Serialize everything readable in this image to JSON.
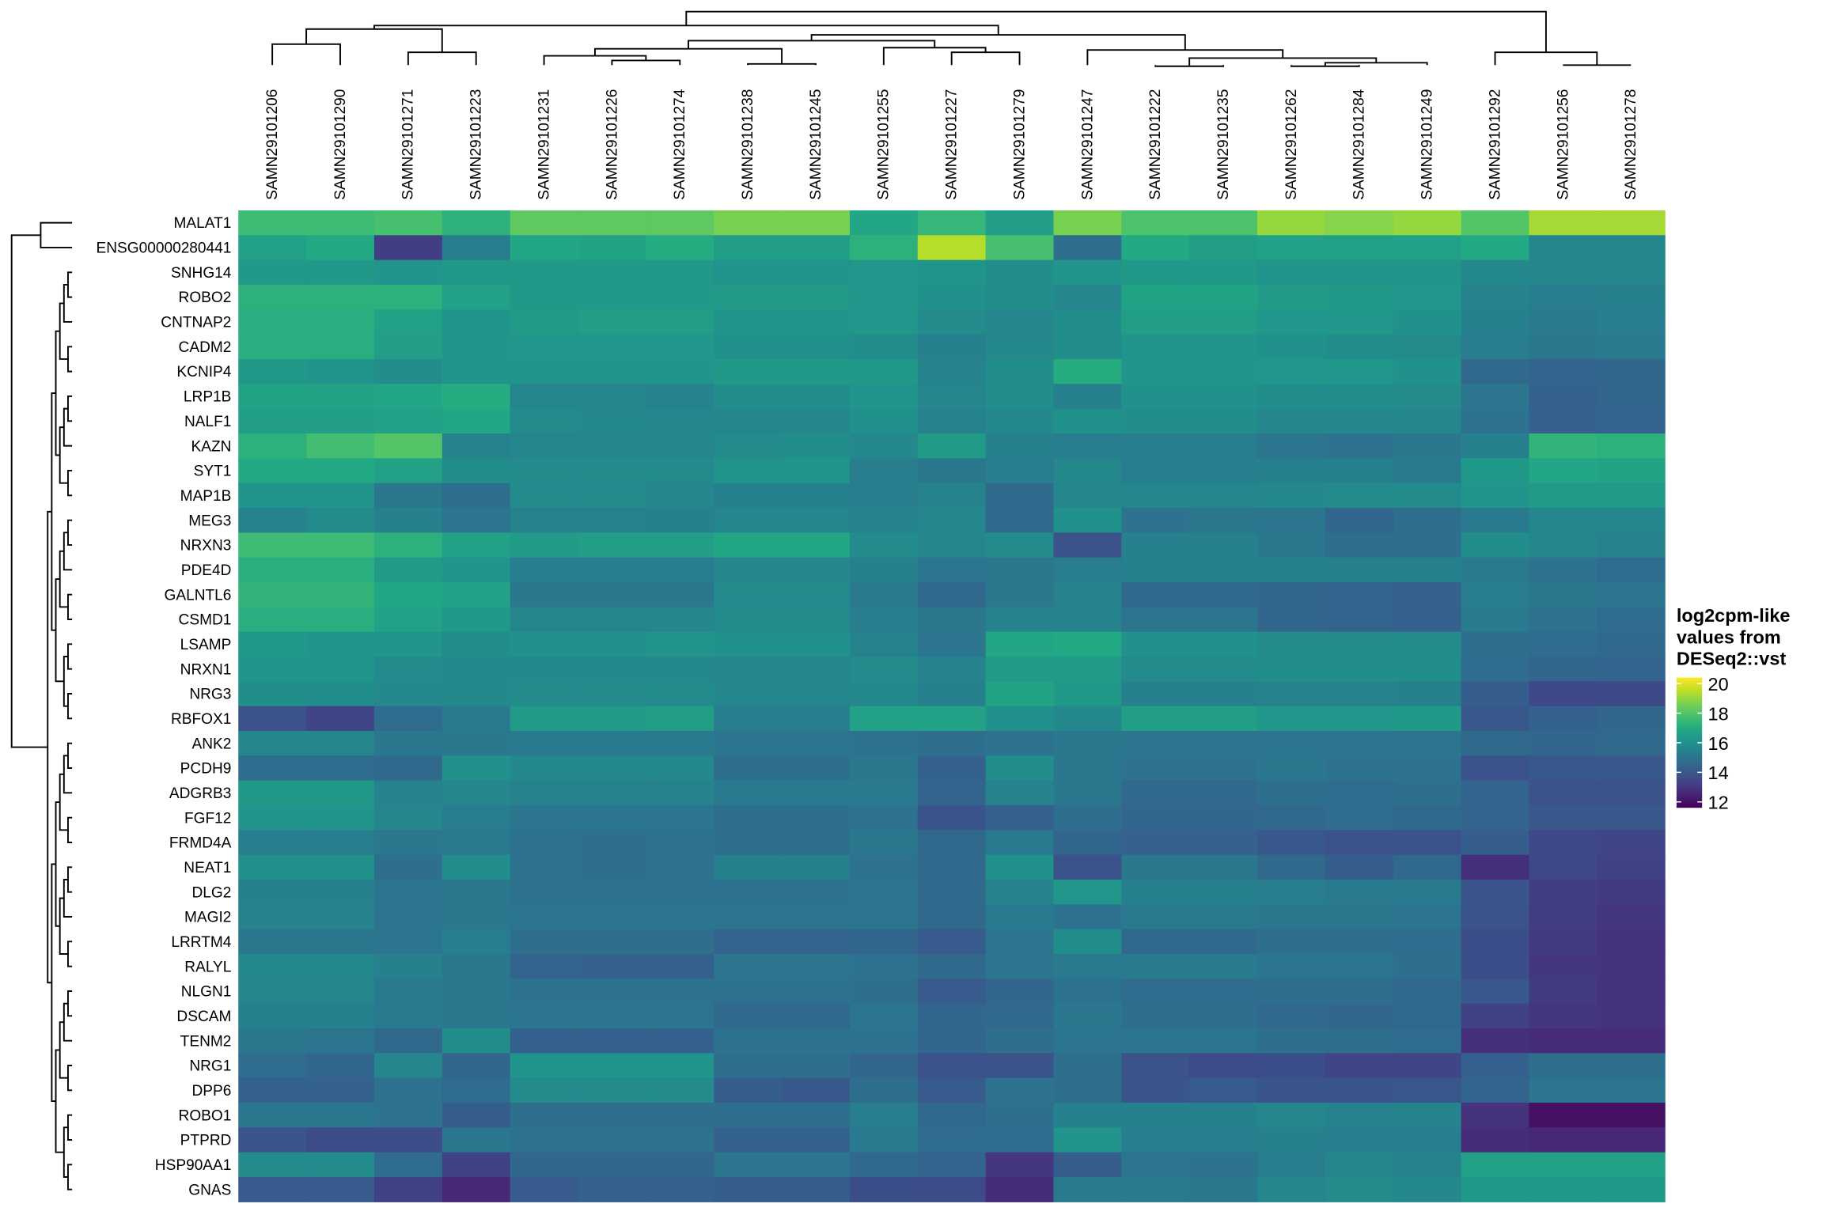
{
  "chart_data": {
    "type": "heatmap",
    "x": [
      "SAMN29101206",
      "SAMN29101290",
      "SAMN29101271",
      "SAMN29101223",
      "SAMN29101231",
      "SAMN29101226",
      "SAMN29101274",
      "SAMN29101238",
      "SAMN29101245",
      "SAMN29101255",
      "SAMN29101227",
      "SAMN29101279",
      "SAMN29101247",
      "SAMN29101222",
      "SAMN29101235",
      "SAMN29101262",
      "SAMN29101284",
      "SAMN29101249",
      "SAMN29101292",
      "SAMN29101256",
      "SAMN29101278"
    ],
    "y": [
      "MALAT1",
      "ENSG00000280441",
      "SNHG14",
      "ROBO2",
      "CNTNAP2",
      "CADM2",
      "KCNIP4",
      "LRP1B",
      "NALF1",
      "KAZN",
      "SYT1",
      "MAP1B",
      "MEG3",
      "NRXN3",
      "PDE4D",
      "GALNTL6",
      "CSMD1",
      "LSAMP",
      "NRXN1",
      "NRG3",
      "RBFOX1",
      "ANK2",
      "PCDH9",
      "ADGRB3",
      "FGF12",
      "FRMD4A",
      "NEAT1",
      "DLG2",
      "MAGI2",
      "LRRTM4",
      "RALYL",
      "NLGN1",
      "DSCAM",
      "TENM2",
      "NRG1",
      "DPP6",
      "ROBO1",
      "PTPRD",
      "HSP90AA1",
      "GNAS"
    ],
    "values": [
      [
        17.6,
        17.6,
        17.8,
        17.2,
        18.2,
        18.2,
        18.2,
        18.6,
        18.6,
        16.8,
        17.4,
        16.5,
        18.6,
        17.9,
        17.9,
        19.0,
        18.8,
        19.0,
        18.0,
        19.2,
        19.2
      ],
      [
        16.6,
        16.9,
        13.2,
        15.3,
        16.8,
        16.7,
        17.0,
        16.5,
        16.5,
        17.2,
        19.4,
        17.8,
        14.8,
        16.9,
        16.5,
        16.6,
        16.6,
        16.6,
        16.9,
        15.6,
        15.6
      ],
      [
        16.3,
        16.3,
        16.1,
        16.3,
        16.3,
        16.3,
        16.3,
        16.1,
        16.1,
        16.2,
        16.1,
        15.9,
        16.1,
        16.3,
        16.3,
        16.1,
        16.1,
        16.1,
        15.7,
        15.6,
        15.6
      ],
      [
        17.2,
        17.2,
        17.2,
        16.6,
        16.3,
        16.3,
        16.3,
        16.4,
        16.4,
        16.2,
        16.0,
        15.9,
        15.6,
        16.7,
        16.7,
        16.4,
        16.3,
        16.2,
        15.5,
        15.3,
        15.4
      ],
      [
        17.1,
        17.1,
        16.6,
        16.1,
        16.4,
        16.5,
        16.5,
        16.1,
        16.1,
        16.2,
        15.8,
        15.6,
        15.9,
        16.5,
        16.5,
        16.2,
        16.2,
        16.0,
        15.4,
        15.2,
        15.3
      ],
      [
        17.1,
        17.1,
        16.5,
        16.1,
        16.2,
        16.2,
        16.2,
        16.0,
        16.0,
        15.9,
        15.4,
        15.7,
        15.9,
        16.1,
        16.1,
        16.0,
        15.9,
        15.8,
        15.3,
        15.1,
        15.2
      ],
      [
        16.3,
        16.1,
        15.9,
        16.1,
        16.1,
        16.1,
        16.1,
        16.3,
        16.3,
        16.3,
        15.5,
        15.9,
        17.0,
        16.1,
        16.1,
        16.2,
        16.2,
        16.0,
        14.6,
        14.4,
        14.5
      ],
      [
        16.7,
        16.7,
        16.8,
        17.0,
        15.6,
        15.6,
        15.5,
        15.9,
        15.9,
        16.1,
        15.6,
        15.9,
        15.4,
        16.0,
        16.0,
        15.9,
        15.9,
        15.8,
        15.0,
        14.3,
        14.5
      ],
      [
        16.5,
        16.5,
        16.6,
        16.8,
        15.8,
        15.7,
        15.6,
        15.6,
        15.6,
        16.0,
        15.5,
        15.7,
        16.0,
        15.9,
        15.9,
        15.6,
        15.6,
        15.6,
        14.9,
        14.3,
        14.4
      ],
      [
        17.2,
        17.7,
        18.0,
        15.5,
        15.6,
        15.6,
        15.6,
        15.8,
        15.9,
        15.7,
        16.4,
        15.4,
        15.3,
        15.3,
        15.3,
        15.0,
        14.9,
        15.1,
        15.4,
        17.3,
        17.2
      ],
      [
        16.9,
        16.9,
        16.6,
        15.9,
        15.8,
        15.8,
        15.8,
        16.1,
        16.1,
        15.3,
        15.1,
        15.3,
        15.7,
        15.3,
        15.3,
        15.4,
        15.4,
        15.2,
        16.3,
        16.8,
        16.7
      ],
      [
        16.1,
        16.1,
        15.1,
        14.8,
        15.8,
        15.8,
        15.6,
        15.4,
        15.4,
        15.3,
        15.5,
        14.6,
        15.6,
        15.6,
        15.6,
        15.7,
        15.8,
        15.8,
        16.1,
        16.4,
        16.4
      ],
      [
        15.5,
        15.8,
        15.4,
        15.0,
        15.5,
        15.5,
        15.4,
        15.6,
        15.6,
        15.5,
        15.6,
        14.6,
        16.0,
        14.9,
        15.1,
        15.0,
        14.5,
        14.8,
        15.2,
        15.6,
        15.6
      ],
      [
        17.6,
        17.6,
        17.2,
        16.6,
        16.4,
        16.5,
        16.5,
        16.8,
        16.8,
        15.8,
        15.6,
        15.8,
        13.8,
        15.4,
        15.4,
        15.1,
        14.8,
        14.8,
        15.9,
        15.6,
        15.5
      ],
      [
        17.1,
        17.1,
        16.4,
        16.1,
        15.3,
        15.3,
        15.3,
        15.6,
        15.6,
        15.4,
        15.0,
        15.1,
        15.3,
        15.4,
        15.4,
        15.4,
        15.4,
        15.4,
        15.2,
        14.9,
        14.7
      ],
      [
        17.3,
        17.3,
        16.8,
        16.6,
        15.1,
        15.1,
        15.1,
        15.8,
        15.8,
        15.2,
        14.6,
        15.1,
        15.5,
        14.6,
        14.6,
        14.5,
        14.4,
        14.3,
        15.3,
        15.1,
        15.0
      ],
      [
        17.1,
        17.1,
        16.6,
        16.3,
        15.6,
        15.6,
        15.6,
        15.8,
        15.8,
        15.3,
        15.1,
        15.5,
        15.5,
        15.0,
        15.0,
        14.5,
        14.4,
        14.3,
        15.2,
        14.9,
        14.7
      ],
      [
        16.3,
        16.1,
        16.1,
        15.9,
        16.0,
        16.0,
        16.1,
        16.0,
        16.0,
        15.5,
        15.0,
        16.8,
        16.9,
        16.0,
        16.0,
        15.8,
        15.8,
        15.8,
        14.8,
        14.7,
        14.6
      ],
      [
        16.1,
        16.1,
        15.8,
        15.7,
        15.7,
        15.7,
        15.7,
        15.6,
        15.6,
        15.8,
        15.5,
        16.4,
        16.4,
        15.8,
        15.8,
        15.9,
        15.9,
        15.9,
        14.7,
        14.5,
        14.4
      ],
      [
        15.9,
        15.9,
        15.7,
        15.7,
        15.8,
        15.8,
        15.8,
        15.6,
        15.6,
        15.7,
        15.4,
        16.7,
        16.3,
        15.4,
        15.4,
        15.5,
        15.5,
        15.4,
        14.2,
        13.5,
        13.5
      ],
      [
        13.8,
        13.4,
        14.7,
        15.2,
        16.4,
        16.4,
        16.5,
        15.3,
        15.3,
        16.6,
        16.6,
        16.0,
        15.7,
        16.5,
        16.5,
        16.2,
        16.2,
        16.3,
        14.0,
        14.3,
        14.5
      ],
      [
        15.6,
        15.6,
        15.1,
        15.1,
        15.2,
        15.2,
        15.2,
        15.0,
        15.0,
        14.9,
        14.8,
        14.9,
        15.1,
        15.0,
        15.0,
        15.0,
        15.0,
        15.0,
        14.6,
        14.5,
        14.6
      ],
      [
        14.7,
        14.7,
        14.6,
        16.0,
        15.7,
        15.7,
        15.7,
        14.8,
        14.8,
        15.1,
        14.3,
        15.9,
        15.1,
        14.9,
        14.9,
        15.1,
        14.9,
        14.9,
        13.8,
        14.0,
        14.0
      ],
      [
        16.3,
        16.3,
        15.5,
        15.6,
        15.5,
        15.5,
        15.5,
        15.2,
        15.2,
        15.2,
        14.4,
        15.5,
        15.1,
        14.6,
        14.6,
        14.8,
        14.7,
        14.8,
        14.4,
        13.8,
        13.8
      ],
      [
        16.1,
        16.1,
        15.6,
        15.3,
        15.0,
        15.0,
        15.0,
        14.8,
        14.8,
        14.9,
        13.9,
        14.3,
        14.8,
        14.5,
        14.5,
        14.6,
        14.7,
        14.6,
        14.4,
        14.0,
        14.0
      ],
      [
        15.3,
        15.3,
        15.1,
        15.2,
        14.9,
        14.8,
        14.9,
        14.8,
        14.8,
        15.1,
        14.6,
        15.2,
        14.5,
        14.3,
        14.3,
        14.0,
        13.8,
        13.8,
        14.2,
        13.5,
        13.4
      ],
      [
        16.0,
        16.0,
        14.8,
        15.9,
        14.9,
        14.8,
        14.9,
        15.4,
        15.4,
        14.9,
        14.6,
        16.0,
        13.8,
        15.1,
        15.1,
        14.6,
        14.2,
        14.6,
        12.8,
        13.5,
        13.3
      ],
      [
        15.4,
        15.4,
        15.0,
        15.1,
        14.9,
        14.9,
        14.9,
        14.9,
        14.9,
        15.0,
        14.6,
        15.5,
        16.2,
        15.4,
        15.4,
        15.3,
        15.2,
        15.2,
        13.9,
        13.2,
        13.1
      ],
      [
        15.5,
        15.5,
        15.0,
        15.1,
        15.0,
        15.0,
        15.0,
        15.0,
        15.0,
        15.0,
        14.6,
        15.2,
        14.9,
        15.2,
        15.2,
        15.1,
        15.1,
        15.0,
        13.8,
        13.2,
        13.0
      ],
      [
        15.1,
        15.1,
        15.0,
        15.3,
        14.8,
        14.8,
        14.8,
        14.4,
        14.4,
        14.5,
        14.1,
        15.0,
        15.9,
        14.6,
        14.6,
        14.8,
        14.8,
        14.7,
        13.7,
        13.1,
        12.9
      ],
      [
        15.7,
        15.7,
        15.4,
        15.1,
        14.4,
        14.3,
        14.3,
        15.0,
        15.0,
        14.9,
        14.6,
        15.0,
        15.2,
        15.2,
        15.2,
        15.0,
        15.0,
        14.8,
        13.7,
        13.0,
        12.9
      ],
      [
        15.6,
        15.6,
        15.2,
        15.1,
        14.9,
        14.9,
        14.9,
        14.9,
        14.9,
        14.8,
        14.1,
        14.5,
        14.9,
        14.7,
        14.7,
        14.8,
        14.8,
        14.6,
        14.0,
        13.1,
        12.9
      ],
      [
        15.4,
        15.4,
        15.2,
        15.1,
        15.0,
        15.0,
        15.0,
        14.6,
        14.6,
        15.0,
        14.5,
        14.6,
        15.1,
        14.8,
        14.8,
        14.6,
        14.5,
        14.6,
        13.3,
        13.0,
        12.9
      ],
      [
        15.1,
        15.0,
        14.6,
        15.9,
        14.3,
        14.3,
        14.3,
        14.9,
        14.9,
        14.9,
        14.5,
        14.8,
        15.0,
        15.0,
        15.0,
        14.8,
        14.8,
        14.7,
        12.8,
        12.7,
        12.7
      ],
      [
        14.7,
        14.5,
        15.6,
        14.5,
        16.1,
        16.1,
        16.1,
        14.8,
        14.8,
        14.5,
        13.8,
        13.8,
        14.8,
        13.8,
        13.6,
        13.7,
        13.4,
        13.4,
        14.3,
        14.8,
        14.8
      ],
      [
        14.3,
        14.3,
        14.9,
        14.7,
        15.8,
        15.8,
        15.8,
        14.2,
        14.0,
        14.8,
        14.1,
        14.9,
        14.8,
        13.9,
        14.1,
        13.9,
        13.9,
        14.0,
        14.4,
        15.0,
        15.0
      ],
      [
        15.1,
        15.1,
        14.9,
        14.2,
        14.8,
        14.8,
        14.8,
        14.8,
        14.8,
        15.3,
        14.6,
        14.8,
        15.4,
        15.4,
        15.4,
        15.6,
        15.5,
        15.5,
        12.9,
        12.0,
        12.0
      ],
      [
        13.9,
        13.6,
        13.6,
        15.1,
        14.9,
        14.9,
        14.9,
        14.3,
        14.3,
        15.2,
        14.7,
        14.7,
        16.1,
        15.3,
        15.3,
        15.4,
        15.3,
        15.3,
        12.7,
        12.6,
        12.6
      ],
      [
        15.8,
        15.8,
        14.7,
        13.3,
        14.5,
        14.5,
        14.5,
        15.0,
        15.0,
        14.6,
        14.4,
        13.0,
        14.2,
        15.0,
        14.9,
        15.3,
        15.6,
        15.5,
        16.6,
        16.6,
        16.6
      ],
      [
        14.1,
        14.1,
        13.3,
        12.6,
        14.1,
        14.3,
        14.3,
        14.2,
        14.2,
        13.7,
        13.6,
        12.7,
        15.2,
        15.2,
        15.1,
        15.6,
        15.8,
        15.7,
        16.3,
        16.3,
        16.3
      ]
    ],
    "colorbar": {
      "title": [
        "log2cpm-like",
        "values from",
        "DESeq2::vst"
      ],
      "lim": [
        11.6,
        20.4
      ],
      "ticks": [
        12,
        14,
        16,
        18,
        20
      ]
    }
  }
}
